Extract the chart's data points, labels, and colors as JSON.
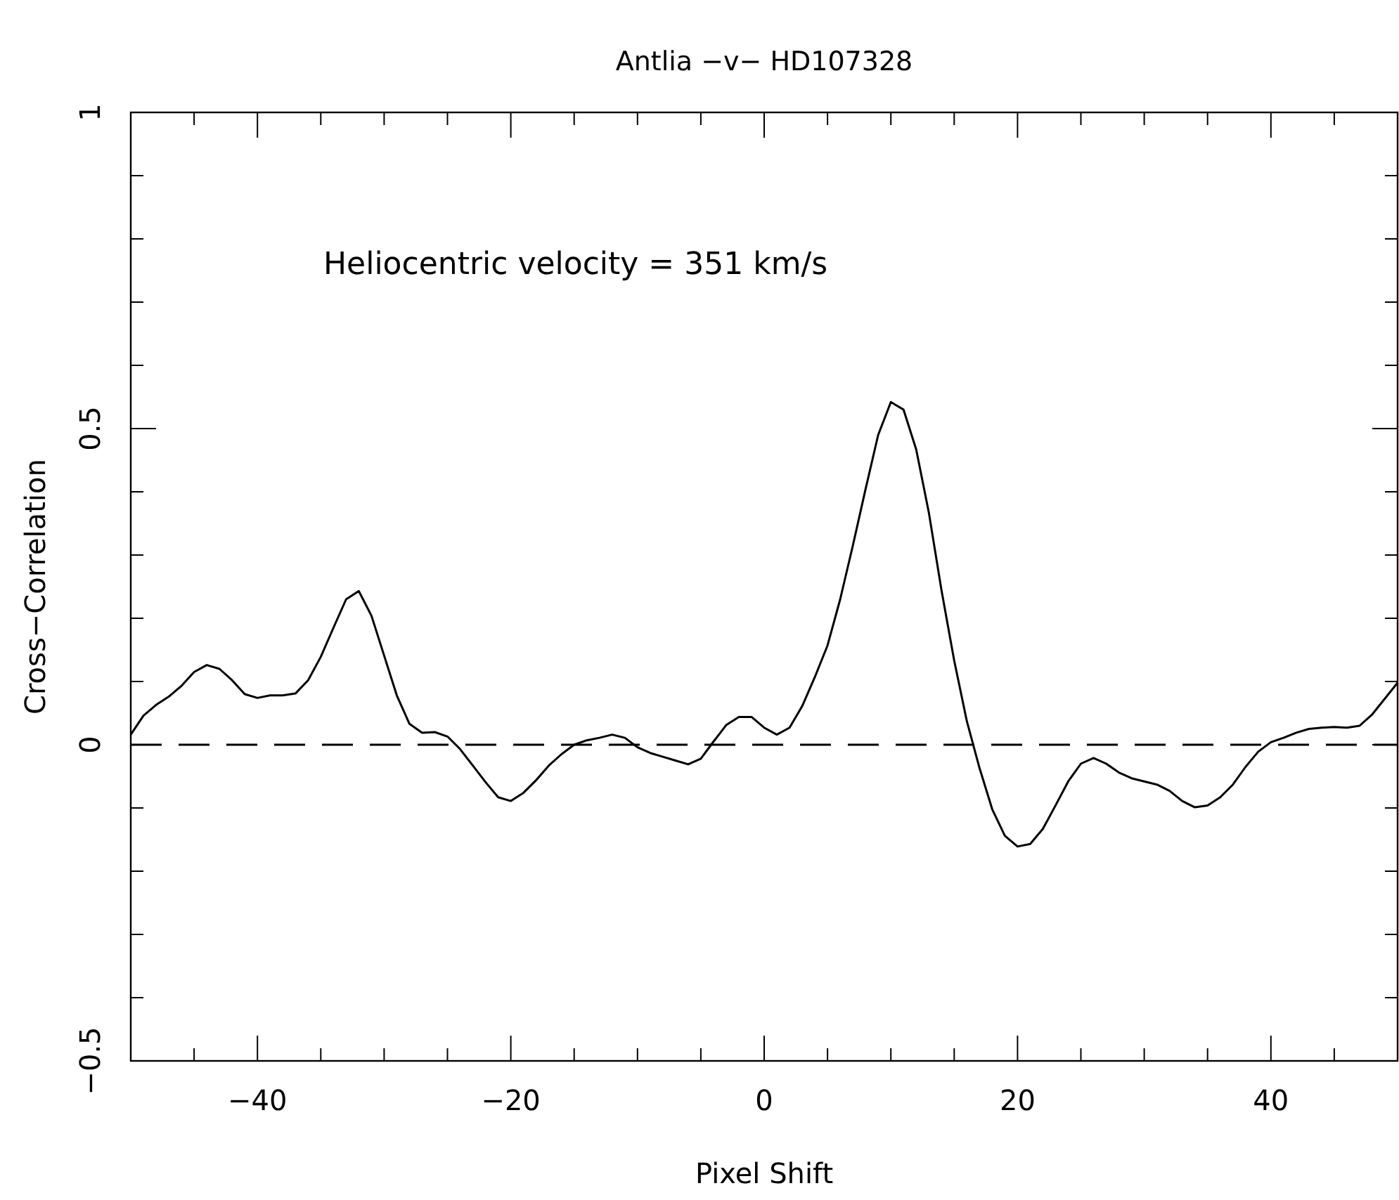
{
  "chart_data": {
    "type": "line",
    "title": "Antlia −v− HD107328",
    "xlabel": "Pixel Shift",
    "ylabel": "Cross−Correlation",
    "annotations": [
      "Heliocentric velocity = 351 km/s"
    ],
    "x": [
      -50,
      -49,
      -48,
      -47,
      -46,
      -45,
      -44,
      -43,
      -42,
      -41,
      -40,
      -39,
      -38,
      -37,
      -36,
      -35,
      -34,
      -33,
      -32,
      -31,
      -30,
      -29,
      -28,
      -27,
      -26,
      -25,
      -24,
      -23,
      -22,
      -21,
      -20,
      -19,
      -18,
      -17,
      -16,
      -15,
      -14,
      -13,
      -12,
      -11,
      -10,
      -9,
      -8,
      -7,
      -6,
      -5,
      -4,
      -3,
      -2,
      -1,
      0,
      1,
      2,
      3,
      4,
      5,
      6,
      7,
      8,
      9,
      10,
      11,
      12,
      13,
      14,
      15,
      16,
      17,
      18,
      19,
      20,
      21,
      22,
      23,
      24,
      25,
      26,
      27,
      28,
      29,
      30,
      31,
      32,
      33,
      34,
      35,
      36,
      37,
      38,
      39,
      40,
      41,
      42,
      43,
      44,
      45,
      46,
      47,
      48,
      50
    ],
    "series": [
      {
        "color": "#000000",
        "values": [
          0.016,
          0.046,
          0.063,
          0.076,
          0.093,
          0.115,
          0.126,
          0.12,
          0.102,
          0.08,
          0.074,
          0.078,
          0.078,
          0.081,
          0.102,
          0.139,
          0.185,
          0.23,
          0.243,
          0.204,
          0.141,
          0.078,
          0.033,
          0.019,
          0.02,
          0.013,
          -0.007,
          -0.033,
          -0.059,
          -0.083,
          -0.089,
          -0.076,
          -0.056,
          -0.033,
          -0.015,
          0.0,
          0.007,
          0.011,
          0.016,
          0.011,
          -0.004,
          -0.013,
          -0.019,
          -0.025,
          -0.031,
          -0.022,
          0.005,
          0.031,
          0.044,
          0.044,
          0.027,
          0.016,
          0.027,
          0.061,
          0.107,
          0.157,
          0.23,
          0.315,
          0.404,
          0.49,
          0.542,
          0.53,
          0.467,
          0.367,
          0.244,
          0.133,
          0.037,
          -0.037,
          -0.102,
          -0.144,
          -0.161,
          -0.157,
          -0.133,
          -0.096,
          -0.058,
          -0.03,
          -0.021,
          -0.03,
          -0.044,
          -0.053,
          -0.058,
          -0.063,
          -0.073,
          -0.089,
          -0.099,
          -0.096,
          -0.083,
          -0.063,
          -0.035,
          -0.011,
          0.004,
          0.011,
          0.019,
          0.025,
          0.027,
          0.028,
          0.027,
          0.03,
          0.048,
          0.098
        ]
      }
    ],
    "xlim": [
      -50,
      50
    ],
    "ylim": [
      -0.5,
      1
    ],
    "xticks": [
      {
        "value": -45,
        "label": null
      },
      -40,
      {
        "value": -35,
        "label": null
      },
      {
        "value": -30,
        "label": null
      },
      {
        "value": -25,
        "label": null
      },
      -20,
      {
        "value": -15,
        "label": null
      },
      {
        "value": -10,
        "label": null
      },
      {
        "value": -5,
        "label": null
      },
      0,
      {
        "value": 5,
        "label": null
      },
      {
        "value": 10,
        "label": null
      },
      {
        "value": 15,
        "label": null
      },
      20,
      {
        "value": 25,
        "label": null
      },
      {
        "value": 30,
        "label": null
      },
      {
        "value": 35,
        "label": null
      },
      40,
      {
        "value": 45,
        "label": null
      }
    ],
    "yticks": [
      -0.5,
      {
        "value": -0.4,
        "label": null
      },
      {
        "value": -0.3,
        "label": null
      },
      {
        "value": -0.2,
        "label": null
      },
      {
        "value": -0.1,
        "label": null
      },
      0,
      {
        "value": 0.1,
        "label": null
      },
      {
        "value": 0.2,
        "label": null
      },
      {
        "value": 0.3,
        "label": null
      },
      {
        "value": 0.4,
        "label": null
      },
      0.5,
      {
        "value": 0.6,
        "label": null
      },
      {
        "value": 0.7,
        "label": null
      },
      {
        "value": 0.8,
        "label": null
      },
      {
        "value": 0.9,
        "label": null
      },
      1
    ],
    "ref_lines": [
      {
        "axis": "y",
        "value": 0,
        "line_style": "dashed",
        "color": "#000000"
      }
    ],
    "line_style": "solid",
    "marker": "none"
  }
}
